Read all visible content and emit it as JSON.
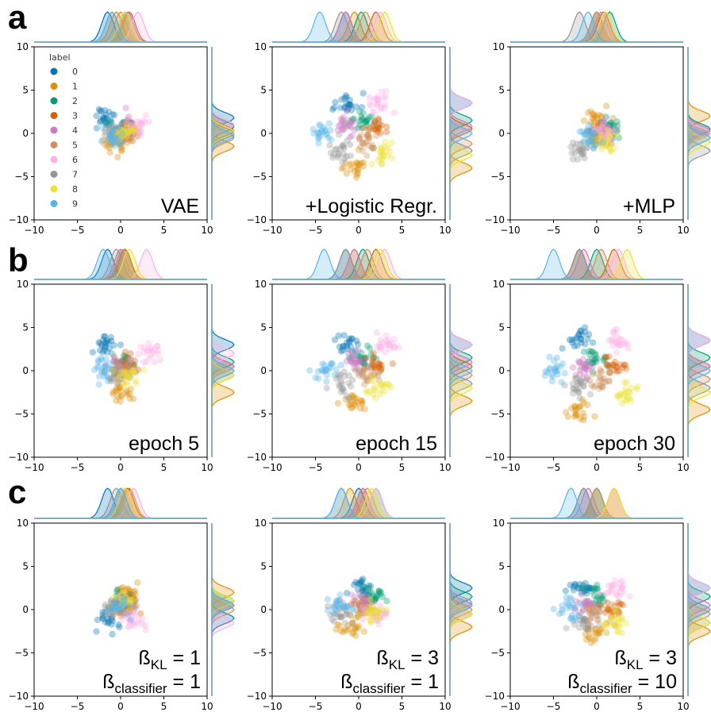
{
  "panel_letters": [
    "a",
    "b",
    "c"
  ],
  "legend": {
    "title": "label",
    "labels": [
      "0",
      "1",
      "2",
      "3",
      "4",
      "5",
      "6",
      "7",
      "8",
      "9"
    ]
  },
  "palette": [
    "#0173b2",
    "#de8f05",
    "#029e73",
    "#d55e00",
    "#cc78bc",
    "#ca9161",
    "#fbafe4",
    "#949494",
    "#ece133",
    "#56b4e9"
  ],
  "axis": {
    "ticks": [
      -10,
      -5,
      0,
      5,
      10
    ],
    "tick_labels": [
      "−10",
      "−5",
      "0",
      "5",
      "10"
    ]
  },
  "chart_data": [
    {
      "type": "scatter",
      "label": "VAE",
      "xlim": [
        -10,
        10
      ],
      "ylim": [
        -10,
        10
      ],
      "clusters": [
        {
          "label": "0",
          "x": -1.5,
          "y": 1.8
        },
        {
          "label": "1",
          "x": -0.5,
          "y": -1.5
        },
        {
          "label": "2",
          "x": 0.5,
          "y": 0.8
        },
        {
          "label": "3",
          "x": 1.0,
          "y": 0.3
        },
        {
          "label": "4",
          "x": 0.8,
          "y": 1.0
        },
        {
          "label": "5",
          "x": 0.0,
          "y": -0.5
        },
        {
          "label": "6",
          "x": 2.0,
          "y": 1.0
        },
        {
          "label": "7",
          "x": -1.0,
          "y": 0.0
        },
        {
          "label": "8",
          "x": 0.5,
          "y": 0.2
        },
        {
          "label": "9",
          "x": -1.0,
          "y": -0.3
        }
      ]
    },
    {
      "type": "scatter",
      "label": "+Logistic Regr.",
      "xlim": [
        -10,
        10
      ],
      "ylim": [
        -10,
        10
      ],
      "clusters": [
        {
          "label": "0",
          "x": -1.5,
          "y": 3.5
        },
        {
          "label": "1",
          "x": -0.5,
          "y": -4.0
        },
        {
          "label": "2",
          "x": 0.3,
          "y": 1.5
        },
        {
          "label": "3",
          "x": 2.0,
          "y": 0.5
        },
        {
          "label": "4",
          "x": -1.5,
          "y": 0.8
        },
        {
          "label": "5",
          "x": 0.8,
          "y": -1.2
        },
        {
          "label": "6",
          "x": 2.5,
          "y": 3.5
        },
        {
          "label": "7",
          "x": -2.0,
          "y": -2.0
        },
        {
          "label": "8",
          "x": 3.0,
          "y": -2.5
        },
        {
          "label": "9",
          "x": -4.5,
          "y": 0.0
        }
      ]
    },
    {
      "type": "scatter",
      "label": "+MLP",
      "xlim": [
        -10,
        10
      ],
      "ylim": [
        -10,
        10
      ],
      "clusters": [
        {
          "label": "0",
          "x": 0.0,
          "y": 0.0
        },
        {
          "label": "1",
          "x": 0.0,
          "y": 2.0
        },
        {
          "label": "2",
          "x": 1.5,
          "y": 0.5
        },
        {
          "label": "3",
          "x": 0.8,
          "y": 0.0
        },
        {
          "label": "4",
          "x": 0.5,
          "y": 0.3
        },
        {
          "label": "5",
          "x": 0.0,
          "y": -0.5
        },
        {
          "label": "6",
          "x": 1.0,
          "y": 0.0
        },
        {
          "label": "7",
          "x": -2.0,
          "y": -2.0
        },
        {
          "label": "8",
          "x": 1.0,
          "y": -1.0
        },
        {
          "label": "9",
          "x": -1.0,
          "y": -0.5
        }
      ]
    },
    {
      "type": "scatter",
      "label": "epoch 5",
      "xlim": [
        -10,
        10
      ],
      "ylim": [
        -10,
        10
      ],
      "clusters": [
        {
          "label": "0",
          "x": -1.5,
          "y": 3.0
        },
        {
          "label": "1",
          "x": 0.0,
          "y": -2.5
        },
        {
          "label": "2",
          "x": 0.5,
          "y": 1.0
        },
        {
          "label": "3",
          "x": 0.5,
          "y": 0.5
        },
        {
          "label": "4",
          "x": 0.0,
          "y": 0.5
        },
        {
          "label": "5",
          "x": 0.3,
          "y": 0.0
        },
        {
          "label": "6",
          "x": 3.0,
          "y": 2.0
        },
        {
          "label": "7",
          "x": -0.5,
          "y": -0.5
        },
        {
          "label": "8",
          "x": 1.0,
          "y": -0.5
        },
        {
          "label": "9",
          "x": -2.0,
          "y": 0.0
        }
      ]
    },
    {
      "type": "scatter",
      "label": "epoch 15",
      "xlim": [
        -10,
        10
      ],
      "ylim": [
        -10,
        10
      ],
      "clusters": [
        {
          "label": "0",
          "x": -1.5,
          "y": 3.0
        },
        {
          "label": "1",
          "x": -0.5,
          "y": -3.5
        },
        {
          "label": "2",
          "x": 0.5,
          "y": 1.5
        },
        {
          "label": "3",
          "x": 2.0,
          "y": 0.5
        },
        {
          "label": "4",
          "x": -0.5,
          "y": 1.0
        },
        {
          "label": "5",
          "x": 1.0,
          "y": -0.5
        },
        {
          "label": "6",
          "x": 3.0,
          "y": 3.0
        },
        {
          "label": "7",
          "x": -1.5,
          "y": -1.5
        },
        {
          "label": "8",
          "x": 2.5,
          "y": -2.0
        },
        {
          "label": "9",
          "x": -4.0,
          "y": 0.0
        }
      ]
    },
    {
      "type": "scatter",
      "label": "epoch 30",
      "xlim": [
        -10,
        10
      ],
      "ylim": [
        -10,
        10
      ],
      "clusters": [
        {
          "label": "0",
          "x": -2.0,
          "y": 3.5
        },
        {
          "label": "1",
          "x": -2.0,
          "y": -4.5
        },
        {
          "label": "2",
          "x": 0.0,
          "y": 1.5
        },
        {
          "label": "3",
          "x": 2.0,
          "y": 0.5
        },
        {
          "label": "4",
          "x": -1.5,
          "y": 0.5
        },
        {
          "label": "5",
          "x": 0.5,
          "y": -1.0
        },
        {
          "label": "6",
          "x": 2.5,
          "y": 3.5
        },
        {
          "label": "7",
          "x": -2.0,
          "y": -2.0
        },
        {
          "label": "8",
          "x": 3.5,
          "y": -2.5
        },
        {
          "label": "9",
          "x": -5.0,
          "y": 0.0
        }
      ]
    },
    {
      "type": "scatter",
      "label": "ß_KL = 1, ß_classifier = 1",
      "label_lines": [
        {
          "base": "ß",
          "sub": "KL",
          "rest": " = 1"
        },
        {
          "base": "ß",
          "sub": "classifier",
          "rest": " = 1"
        }
      ],
      "xlim": [
        -10,
        10
      ],
      "ylim": [
        -10,
        10
      ],
      "clusters": [
        {
          "label": "0",
          "x": -1.5,
          "y": -1.0
        },
        {
          "label": "1",
          "x": 1.0,
          "y": 2.0
        },
        {
          "label": "2",
          "x": 0.0,
          "y": 1.0
        },
        {
          "label": "3",
          "x": 0.8,
          "y": 0.5
        },
        {
          "label": "4",
          "x": 0.0,
          "y": 0.5
        },
        {
          "label": "5",
          "x": 0.5,
          "y": 0.0
        },
        {
          "label": "6",
          "x": 1.5,
          "y": -1.5
        },
        {
          "label": "7",
          "x": -0.5,
          "y": 0.5
        },
        {
          "label": "8",
          "x": 0.5,
          "y": 1.0
        },
        {
          "label": "9",
          "x": 0.0,
          "y": 0.5
        }
      ]
    },
    {
      "type": "scatter",
      "label": "ß_KL = 3, ß_classifier = 1",
      "label_lines": [
        {
          "base": "ß",
          "sub": "KL",
          "rest": " = 3"
        },
        {
          "base": "ß",
          "sub": "classifier",
          "rest": " = 1"
        }
      ],
      "xlim": [
        -10,
        10
      ],
      "ylim": [
        -10,
        10
      ],
      "clusters": [
        {
          "label": "0",
          "x": 0.0,
          "y": 2.5
        },
        {
          "label": "1",
          "x": -1.0,
          "y": -2.0
        },
        {
          "label": "2",
          "x": 2.0,
          "y": 1.5
        },
        {
          "label": "3",
          "x": 0.5,
          "y": 0.5
        },
        {
          "label": "4",
          "x": 0.5,
          "y": 0.8
        },
        {
          "label": "5",
          "x": 1.0,
          "y": 0.0
        },
        {
          "label": "6",
          "x": 2.0,
          "y": -0.5
        },
        {
          "label": "7",
          "x": -2.0,
          "y": -0.5
        },
        {
          "label": "8",
          "x": 1.5,
          "y": -0.5
        },
        {
          "label": "9",
          "x": -2.0,
          "y": 0.5
        }
      ]
    },
    {
      "type": "scatter",
      "label": "ß_KL = 3, ß_classifier = 10",
      "label_lines": [
        {
          "base": "ß",
          "sub": "KL",
          "rest": " = 3"
        },
        {
          "base": "ß",
          "sub": "classifier",
          "rest": " = 10"
        }
      ],
      "xlim": [
        -10,
        10
      ],
      "ylim": [
        -10,
        10
      ],
      "clusters": [
        {
          "label": "0",
          "x": -1.5,
          "y": 2.5
        },
        {
          "label": "1",
          "x": 0.0,
          "y": -2.5
        },
        {
          "label": "2",
          "x": 0.0,
          "y": 1.5
        },
        {
          "label": "3",
          "x": 2.0,
          "y": 0.0
        },
        {
          "label": "4",
          "x": -1.0,
          "y": 0.5
        },
        {
          "label": "5",
          "x": 0.0,
          "y": -0.5
        },
        {
          "label": "6",
          "x": 2.0,
          "y": 2.5
        },
        {
          "label": "7",
          "x": -1.5,
          "y": -1.5
        },
        {
          "label": "8",
          "x": 2.0,
          "y": -1.5
        },
        {
          "label": "9",
          "x": -3.0,
          "y": 0.0
        }
      ]
    }
  ]
}
